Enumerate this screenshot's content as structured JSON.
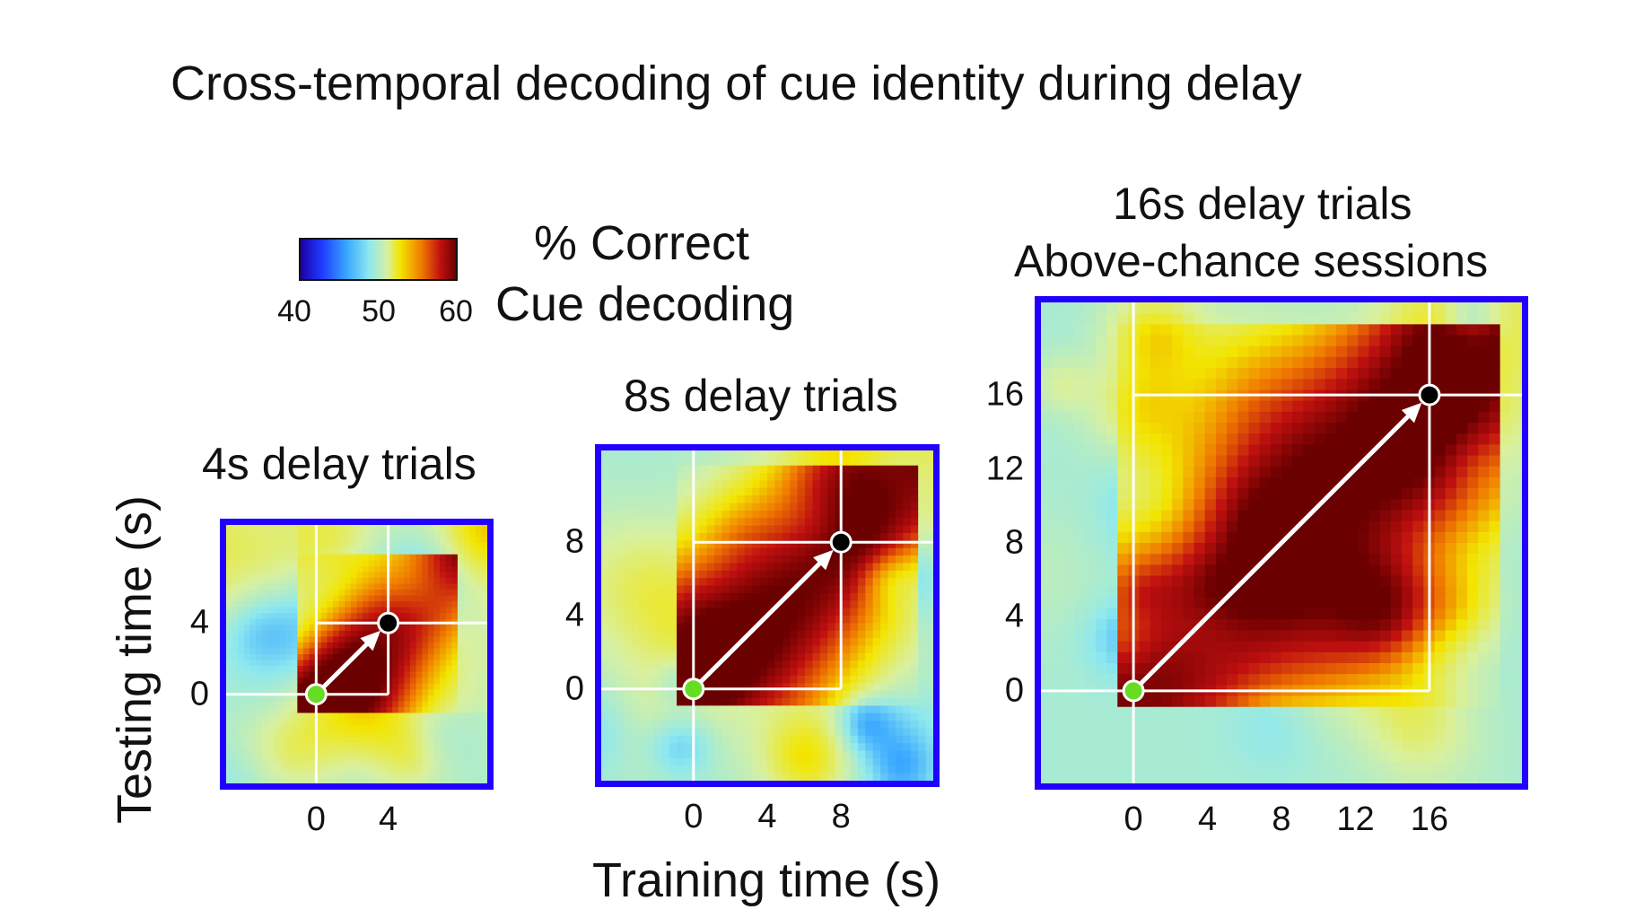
{
  "title": "Cross-temporal decoding of cue identity during delay",
  "colorbar": {
    "label_line1": "% Correct",
    "label_line2": "Cue decoding",
    "ticks": [
      "40",
      "50",
      "60"
    ],
    "min": 40,
    "max": 60,
    "colors": [
      "#1a00a8",
      "#1f3cff",
      "#3aa8ff",
      "#8de8ef",
      "#d8f0a0",
      "#f3e500",
      "#f07a00",
      "#c01010",
      "#6b0000"
    ]
  },
  "xlabel": "Training time (s)",
  "ylabel": "Testing time (s)",
  "chart_data": [
    {
      "type": "heatmap",
      "title": "4s delay trials",
      "xlabel": "Training time (s)",
      "ylabel": "Testing time (s)",
      "xlim": [
        -5,
        9.5
      ],
      "ylim": [
        -5,
        9.5
      ],
      "xticks": [
        0,
        4
      ],
      "yticks": [
        0,
        4
      ],
      "xtick_labels": [
        "0",
        "4"
      ],
      "ytick_labels": [
        "0",
        "4"
      ],
      "delay": 4,
      "arrow": {
        "from": [
          0,
          0
        ],
        "to": [
          4,
          4
        ]
      },
      "value_range": [
        40,
        60
      ]
    },
    {
      "type": "heatmap",
      "title": "8s delay trials",
      "xlabel": "Training time (s)",
      "ylabel": "Testing time (s)",
      "xlim": [
        -5,
        13
      ],
      "ylim": [
        -5,
        13
      ],
      "xticks": [
        0,
        4,
        8
      ],
      "yticks": [
        0,
        4,
        8
      ],
      "xtick_labels": [
        "0",
        "4",
        "8"
      ],
      "ytick_labels": [
        "0",
        "4",
        "8"
      ],
      "delay": 8,
      "arrow": {
        "from": [
          0,
          0
        ],
        "to": [
          8,
          8
        ]
      },
      "value_range": [
        40,
        60
      ]
    },
    {
      "type": "heatmap",
      "title": "16s delay trials",
      "subtitle": "Above-chance sessions",
      "xlabel": "Training time (s)",
      "ylabel": "Testing time (s)",
      "xlim": [
        -5,
        21
      ],
      "ylim": [
        -5,
        21
      ],
      "xticks": [
        0,
        4,
        8,
        12,
        16
      ],
      "yticks": [
        0,
        4,
        8,
        12,
        16
      ],
      "xtick_labels": [
        "0",
        "4",
        "8",
        "12",
        "16"
      ],
      "ytick_labels": [
        "0",
        "4",
        "8",
        "12",
        "16"
      ],
      "delay": 16,
      "arrow": {
        "from": [
          0,
          0
        ],
        "to": [
          16,
          16
        ]
      },
      "value_range": [
        40,
        60
      ]
    }
  ]
}
